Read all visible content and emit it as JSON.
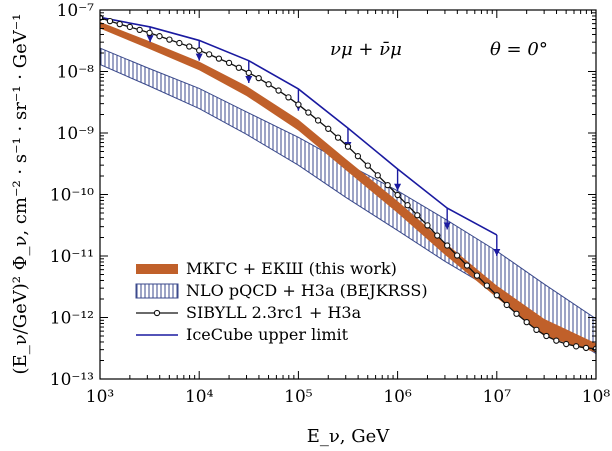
{
  "chart_data": {
    "type": "line",
    "xscale": "log",
    "yscale": "log",
    "xlim": [
      1000,
      100000000
    ],
    "ylim": [
      1e-13,
      1e-07
    ],
    "xlabel": "E_ν, GeV",
    "ylabel": "(E_ν/GeV)² Φ_ν, cm⁻² · s⁻¹ · sr⁻¹ · GeV⁻¹",
    "x_tick_labels": [
      "10³",
      "10⁴",
      "10⁵",
      "10⁶",
      "10⁷",
      "10⁸"
    ],
    "y_tick_labels": [
      "10⁻¹³",
      "10⁻¹²",
      "10⁻¹¹",
      "10⁻¹⁰",
      "10⁻⁹",
      "10⁻⁸",
      "10⁻⁷"
    ],
    "annotations": {
      "flavor": "νμ + ν̄μ",
      "angle": "θ = 0°"
    },
    "legend_position": "bottom-left",
    "colors": {
      "mkgs": "#c0602a",
      "nlo": "#3b4a8c",
      "sibyll": "#111111",
      "icecube": "#1a1aa0"
    },
    "series": [
      {
        "name": "МКГС + ЕКШ (this work)",
        "kind": "band",
        "x": [
          1000,
          3000,
          10000,
          30000,
          100000,
          300000,
          1000000,
          3000000,
          10000000,
          30000000,
          100000000
        ],
        "y_low": [
          5e-08,
          2.4e-08,
          1.05e-08,
          4e-09,
          1.1e-09,
          2.5e-10,
          5e-11,
          1.05e-11,
          2.1e-12,
          5e-13,
          2.7e-13
        ],
        "y_high": [
          6.4e-08,
          3.2e-08,
          1.45e-08,
          5.8e-09,
          1.65e-09,
          3.8e-10,
          7.8e-11,
          1.65e-11,
          3.3e-12,
          9.5e-13,
          3.8e-13
        ]
      },
      {
        "name": "NLO pQCD + H3a (BEJKRSS)",
        "kind": "band",
        "x": [
          1000,
          3000,
          10000,
          30000,
          100000,
          300000,
          1000000,
          3000000,
          10000000,
          30000000,
          100000000
        ],
        "y_low": [
          1.3e-08,
          6e-09,
          2.5e-09,
          9.5e-10,
          3e-10,
          9e-11,
          2.6e-11,
          8.2e-12,
          2.6e-12,
          8.5e-13,
          2.6e-13
        ],
        "y_high": [
          2.4e-08,
          1.15e-08,
          5.3e-09,
          2.2e-09,
          8.5e-10,
          3.2e-10,
          1.15e-10,
          4e-11,
          1.2e-11,
          3.5e-12,
          9.5e-13
        ]
      },
      {
        "name": "SIBYLL 2.3rc1 + H3a",
        "kind": "line-markers",
        "x": [
          1000,
          1260,
          1580,
          2000,
          2510,
          3160,
          3980,
          5010,
          6310,
          7940,
          10000,
          12600,
          15800,
          20000,
          25100,
          31600,
          39800,
          50100,
          63100,
          79400,
          100000,
          126000,
          158000,
          200000,
          251000,
          316000,
          398000,
          501000,
          631000,
          794000,
          1000000,
          1260000,
          1580000,
          2000000,
          2510000,
          3160000,
          3980000,
          5010000,
          6310000,
          7940000,
          10000000,
          12600000,
          15800000,
          20000000,
          25100000,
          31600000,
          39800000,
          50100000,
          63100000,
          79400000,
          100000000
        ],
        "y": [
          7.5e-08,
          6.6e-08,
          5.9e-08,
          5.3e-08,
          4.75e-08,
          4.25e-08,
          3.75e-08,
          3.3e-08,
          2.9e-08,
          2.55e-08,
          2.2e-08,
          1.9e-08,
          1.62e-08,
          1.38e-08,
          1.15e-08,
          9.5e-09,
          7.8e-09,
          6.2e-09,
          4.9e-09,
          3.8e-09,
          2.9e-09,
          2.15e-09,
          1.6e-09,
          1.17e-09,
          8.4e-10,
          6e-10,
          4.2e-10,
          2.95e-10,
          2.05e-10,
          1.42e-10,
          9.8e-11,
          6.7e-11,
          4.6e-11,
          3.15e-11,
          2.15e-11,
          1.48e-11,
          1.02e-11,
          7e-12,
          4.8e-12,
          3.3e-12,
          2.3e-12,
          1.6e-12,
          1.15e-12,
          8.4e-13,
          6.3e-13,
          5e-13,
          4.2e-13,
          3.7e-13,
          3.4e-13,
          3.2e-13,
          3.1e-13
        ]
      },
      {
        "name": "IceCube upper limit",
        "kind": "line",
        "x": [
          1000,
          3200,
          10000,
          31600,
          100000,
          316000,
          1000000,
          3160000,
          10000000
        ],
        "y": [
          7.6e-08,
          5.3e-08,
          3.2e-08,
          1.5e-08,
          5.2e-09,
          1.2e-09,
          2.6e-10,
          6e-11,
          2.2e-11
        ]
      }
    ],
    "icecube_arrows": [
      {
        "x": 3200,
        "y_top": 5.3e-08,
        "y_bottom": 3e-08
      },
      {
        "x": 10000,
        "y_top": 3.2e-08,
        "y_bottom": 1.5e-08
      },
      {
        "x": 31600,
        "y_top": 1.5e-08,
        "y_bottom": 6.5e-09
      },
      {
        "x": 100000,
        "y_top": 5.2e-09,
        "y_bottom": 2.3e-09
      },
      {
        "x": 316000,
        "y_top": 1.2e-09,
        "y_bottom": 5.5e-10
      },
      {
        "x": 1000000,
        "y_top": 2.6e-10,
        "y_bottom": 1.15e-10
      },
      {
        "x": 3160000,
        "y_top": 6e-11,
        "y_bottom": 2.7e-11
      },
      {
        "x": 10000000,
        "y_top": 2.2e-11,
        "y_bottom": 1e-11
      }
    ]
  }
}
